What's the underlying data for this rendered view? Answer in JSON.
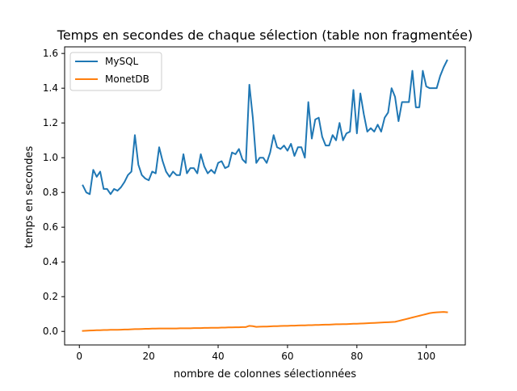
{
  "chart_data": {
    "type": "line",
    "title": "Temps en secondes de chaque sélection (table non fragmentée)",
    "xlabel": "nombre de colonnes sélectionnées",
    "ylabel": "temps en secondes",
    "xlim": [
      -4.25,
      111.25
    ],
    "ylim": [
      -0.078,
      1.638
    ],
    "x_ticks": [
      0,
      20,
      40,
      60,
      80,
      100
    ],
    "y_ticks": [
      0.0,
      0.2,
      0.4,
      0.6,
      0.8,
      1.0,
      1.2,
      1.4,
      1.6
    ],
    "x_tick_labels": [
      "0",
      "20",
      "40",
      "60",
      "80",
      "100"
    ],
    "y_tick_labels": [
      "0.0",
      "0.2",
      "0.4",
      "0.6",
      "0.8",
      "1.0",
      "1.2",
      "1.4",
      "1.6"
    ],
    "grid": false,
    "legend": "top-left",
    "x": [
      1,
      2,
      3,
      4,
      5,
      6,
      7,
      8,
      9,
      10,
      11,
      12,
      13,
      14,
      15,
      16,
      17,
      18,
      19,
      20,
      21,
      22,
      23,
      24,
      25,
      26,
      27,
      28,
      29,
      30,
      31,
      32,
      33,
      34,
      35,
      36,
      37,
      38,
      39,
      40,
      41,
      42,
      43,
      44,
      45,
      46,
      47,
      48,
      49,
      50,
      51,
      52,
      53,
      54,
      55,
      56,
      57,
      58,
      59,
      60,
      61,
      62,
      63,
      64,
      65,
      66,
      67,
      68,
      69,
      70,
      71,
      72,
      73,
      74,
      75,
      76,
      77,
      78,
      79,
      80,
      81,
      82,
      83,
      84,
      85,
      86,
      87,
      88,
      89,
      90,
      91,
      92,
      93,
      94,
      95,
      96,
      97,
      98,
      99,
      100,
      101,
      102,
      103,
      104,
      105,
      106
    ],
    "series": [
      {
        "name": "MySQL",
        "color": "#1f77b4",
        "values": [
          0.84,
          0.8,
          0.79,
          0.93,
          0.89,
          0.92,
          0.82,
          0.82,
          0.79,
          0.82,
          0.81,
          0.83,
          0.86,
          0.9,
          0.92,
          1.13,
          0.96,
          0.9,
          0.88,
          0.87,
          0.92,
          0.91,
          1.06,
          0.98,
          0.92,
          0.89,
          0.92,
          0.9,
          0.9,
          1.02,
          0.91,
          0.94,
          0.94,
          0.91,
          1.02,
          0.95,
          0.91,
          0.93,
          0.91,
          0.97,
          0.98,
          0.94,
          0.95,
          1.03,
          1.02,
          1.05,
          0.99,
          0.97,
          1.42,
          1.23,
          0.97,
          1.0,
          1.0,
          0.97,
          1.03,
          1.13,
          1.06,
          1.05,
          1.07,
          1.04,
          1.08,
          1.01,
          1.06,
          1.06,
          1.0,
          1.32,
          1.11,
          1.22,
          1.23,
          1.12,
          1.07,
          1.07,
          1.13,
          1.1,
          1.2,
          1.1,
          1.14,
          1.15,
          1.39,
          1.14,
          1.37,
          1.25,
          1.15,
          1.17,
          1.15,
          1.19,
          1.15,
          1.23,
          1.26,
          1.4,
          1.35,
          1.21,
          1.32,
          1.32,
          1.32,
          1.5,
          1.29,
          1.29,
          1.5,
          1.41,
          1.4,
          1.4,
          1.4,
          1.47,
          1.52,
          1.56
        ]
      },
      {
        "name": "MonetDB",
        "color": "#ff7f0e",
        "values": [
          0.003,
          0.004,
          0.005,
          0.006,
          0.007,
          0.007,
          0.008,
          0.008,
          0.009,
          0.009,
          0.009,
          0.01,
          0.011,
          0.011,
          0.012,
          0.013,
          0.013,
          0.014,
          0.015,
          0.015,
          0.016,
          0.016,
          0.017,
          0.017,
          0.017,
          0.017,
          0.017,
          0.017,
          0.018,
          0.018,
          0.018,
          0.018,
          0.019,
          0.019,
          0.019,
          0.02,
          0.02,
          0.021,
          0.021,
          0.021,
          0.022,
          0.022,
          0.023,
          0.023,
          0.024,
          0.024,
          0.025,
          0.025,
          0.032,
          0.03,
          0.026,
          0.027,
          0.028,
          0.028,
          0.029,
          0.03,
          0.03,
          0.031,
          0.032,
          0.032,
          0.033,
          0.033,
          0.034,
          0.035,
          0.035,
          0.036,
          0.036,
          0.037,
          0.037,
          0.038,
          0.039,
          0.039,
          0.04,
          0.041,
          0.041,
          0.042,
          0.042,
          0.043,
          0.044,
          0.044,
          0.045,
          0.046,
          0.047,
          0.048,
          0.049,
          0.05,
          0.051,
          0.052,
          0.053,
          0.054,
          0.055,
          0.06,
          0.065,
          0.07,
          0.075,
          0.08,
          0.085,
          0.09,
          0.095,
          0.1,
          0.105,
          0.108,
          0.11,
          0.111,
          0.112,
          0.11
        ]
      }
    ]
  }
}
